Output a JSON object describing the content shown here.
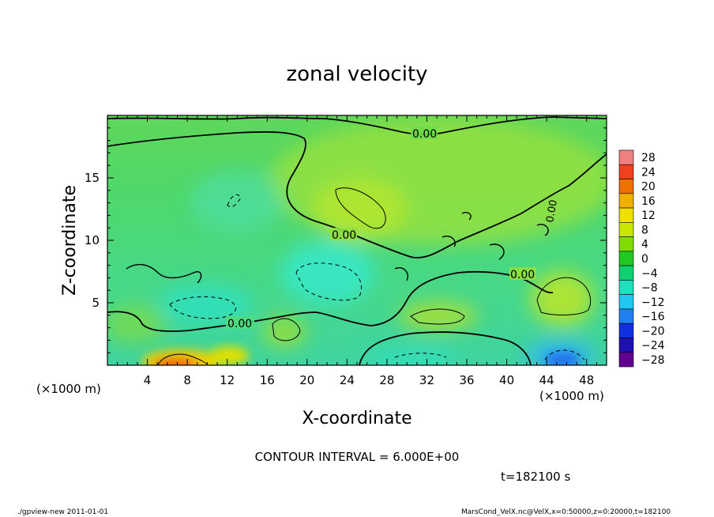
{
  "chart_data": {
    "type": "heatmap",
    "title": "zonal velocity",
    "xlabel": "X-coordinate",
    "ylabel": "Z-coordinate",
    "x_unit_label": "(×1000 m)",
    "y_unit_label": "(×1000 m)",
    "xlim": [
      0,
      50
    ],
    "ylim": [
      0,
      20
    ],
    "x_ticks": [
      4,
      8,
      12,
      16,
      20,
      24,
      28,
      32,
      36,
      40,
      44,
      48
    ],
    "y_ticks": [
      5,
      10,
      15
    ],
    "colorbar": {
      "levels": [
        28,
        24,
        20,
        16,
        12,
        8,
        4,
        0,
        -4,
        -8,
        -12,
        -16,
        -20,
        -24,
        -28
      ],
      "labels": [
        "28",
        "24",
        "20",
        "16",
        "12",
        "8",
        "4",
        "0",
        "−4",
        "−8",
        "−12",
        "−16",
        "−20",
        "−24",
        "−28"
      ],
      "colors": [
        "#f08080",
        "#f04020",
        "#f07000",
        "#f0b000",
        "#f0e000",
        "#c8e600",
        "#80dc00",
        "#20c820",
        "#10d070",
        "#20e0c0",
        "#20c8f0",
        "#2080f0",
        "#1030e0",
        "#2010b0",
        "#600090"
      ]
    },
    "contour_labels": [
      "0.00",
      "0.00",
      "0.00",
      "0.00",
      "0.00"
    ],
    "contour_interval_text": "CONTOUR INTERVAL = 6.000E+00",
    "time_text": "t=182100 s",
    "features": [
      {
        "kind": "max",
        "x": 6.5,
        "z": 0.5,
        "value": 18
      },
      {
        "kind": "max",
        "x": 11,
        "z": 1.2,
        "value": 10
      },
      {
        "kind": "max",
        "x": 25.5,
        "z": 12.5,
        "value": 7
      },
      {
        "kind": "max",
        "x": 47,
        "z": 5.5,
        "value": 7
      },
      {
        "kind": "min",
        "x": 22,
        "z": 7,
        "value": -9
      },
      {
        "kind": "min",
        "x": 46,
        "z": 0.8,
        "value": -14
      },
      {
        "kind": "min",
        "x": 12.5,
        "z": 5.2,
        "value": -6
      }
    ]
  },
  "footer": {
    "left": "./gpview-new   2011-01-01",
    "right": "MarsCond_VelX.nc@VelX,x=0:50000,z=0:20000,t=182100"
  }
}
